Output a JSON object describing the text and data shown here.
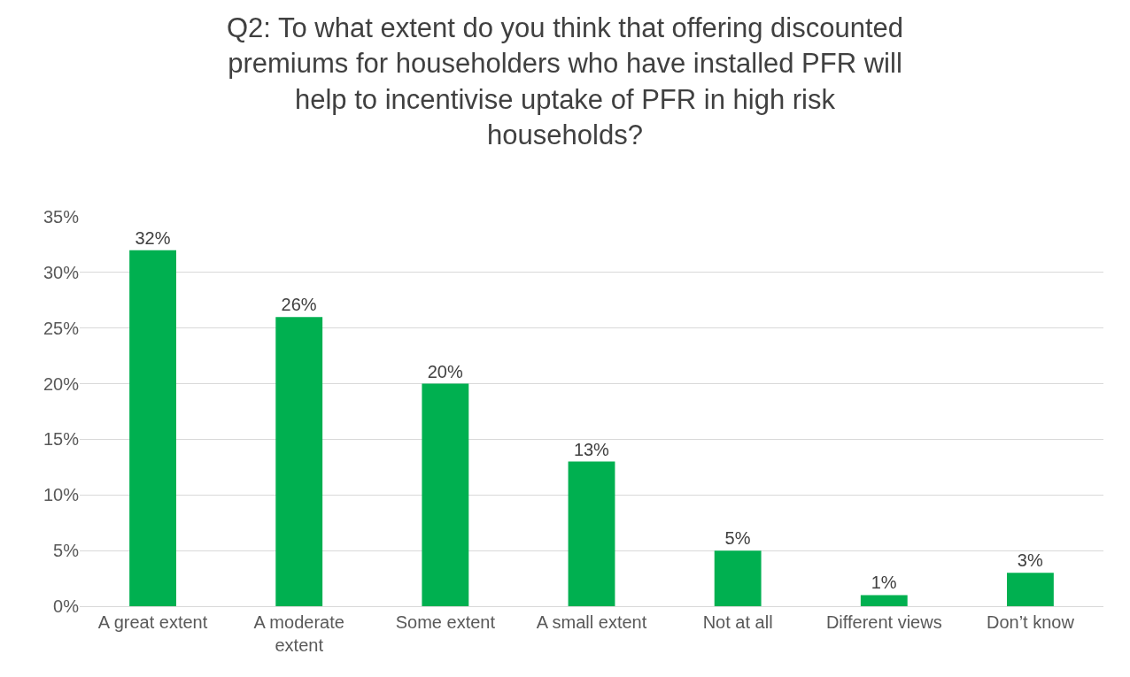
{
  "chart_data": {
    "type": "bar",
    "title": "Q2: To what extent do you think that offering discounted premiums for householders who have installed PFR will help to incentivise uptake of PFR in high risk households?",
    "categories": [
      "A great extent",
      "A moderate extent",
      "Some extent",
      "A small extent",
      "Not at all",
      "Different views",
      "Don’t know"
    ],
    "values": [
      32,
      26,
      20,
      13,
      5,
      1,
      3
    ],
    "value_labels": [
      "32%",
      "26%",
      "20%",
      "13%",
      "5%",
      "1%",
      "3%"
    ],
    "color": "#00b050",
    "ylim": [
      0,
      35
    ],
    "yticks": [
      {
        "value": 0,
        "label": "0%"
      },
      {
        "value": 5,
        "label": "5%"
      },
      {
        "value": 10,
        "label": "10%"
      },
      {
        "value": 15,
        "label": "15%"
      },
      {
        "value": 20,
        "label": "20%"
      },
      {
        "value": 25,
        "label": "25%"
      },
      {
        "value": 30,
        "label": "30%"
      },
      {
        "value": 35,
        "label": "35%"
      }
    ],
    "grid": "y"
  }
}
